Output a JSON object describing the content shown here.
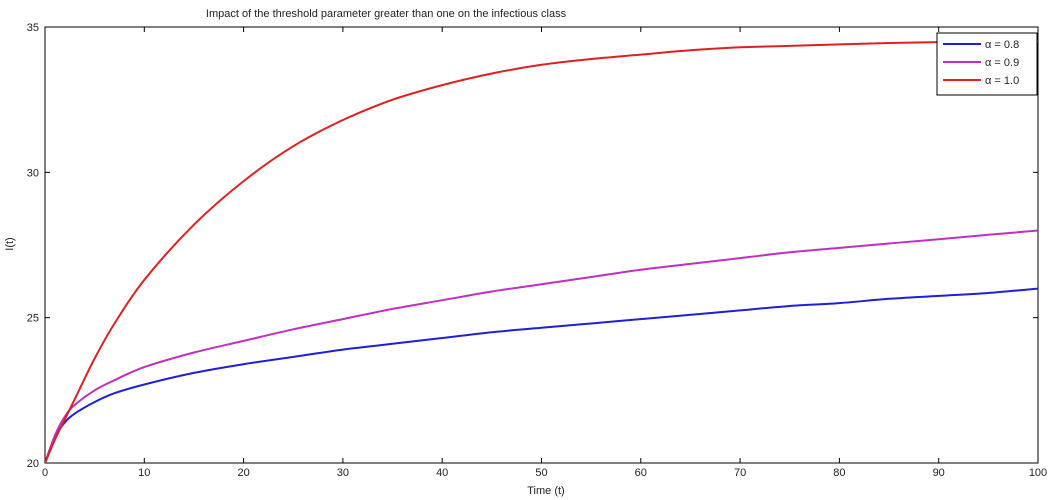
{
  "chart_data": {
    "type": "line",
    "title": "Impact of the threshold parameter greater than one on the infectious class",
    "xlabel": "Time (t)",
    "ylabel": "I(t)",
    "xlim": [
      0,
      100
    ],
    "ylim": [
      20,
      35
    ],
    "xticks": [
      0,
      10,
      20,
      30,
      40,
      50,
      60,
      70,
      80,
      90,
      100
    ],
    "yticks": [
      20,
      25,
      30,
      35
    ],
    "grid": false,
    "legend_position": "top-right",
    "x": [
      0,
      1,
      2,
      3,
      5,
      7,
      10,
      15,
      20,
      25,
      30,
      35,
      40,
      45,
      50,
      55,
      60,
      65,
      70,
      75,
      80,
      85,
      90,
      95,
      100
    ],
    "series": [
      {
        "name": "α = 0.8",
        "color": "#1f1fd6",
        "values": [
          20.0,
          20.9,
          21.4,
          21.7,
          22.1,
          22.4,
          22.7,
          23.1,
          23.4,
          23.65,
          23.9,
          24.1,
          24.3,
          24.5,
          24.65,
          24.8,
          24.95,
          25.1,
          25.25,
          25.4,
          25.5,
          25.65,
          25.75,
          25.85,
          26.0
        ]
      },
      {
        "name": "α = 0.9",
        "color": "#c030c0",
        "values": [
          20.0,
          20.95,
          21.6,
          22.0,
          22.5,
          22.85,
          23.3,
          23.8,
          24.2,
          24.6,
          24.95,
          25.3,
          25.6,
          25.9,
          26.15,
          26.4,
          26.65,
          26.85,
          27.05,
          27.25,
          27.4,
          27.55,
          27.7,
          27.85,
          28.0
        ]
      },
      {
        "name": "α = 1.0",
        "color": "#e02020",
        "values": [
          20.0,
          20.8,
          21.5,
          22.2,
          23.6,
          24.8,
          26.3,
          28.2,
          29.7,
          30.9,
          31.8,
          32.5,
          33.0,
          33.4,
          33.7,
          33.9,
          34.05,
          34.2,
          34.3,
          34.35,
          34.4,
          34.45,
          34.48,
          34.5,
          34.5
        ]
      }
    ]
  }
}
